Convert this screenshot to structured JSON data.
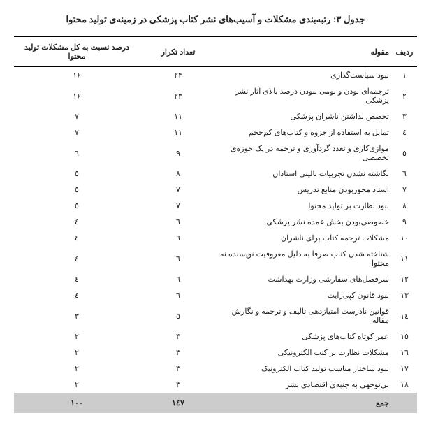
{
  "title": "جدول ۳: رتبه‌بندی مشکلات و آسیب‌های نشر کتاب پزشکی در زمینه‌ی تولید محتوا",
  "columns": {
    "index": "ردیف",
    "category": "مقوله",
    "count": "تعداد تکرار",
    "percent": "درصد نسبت به کل مشکلات تولید محتوا"
  },
  "rows": [
    {
      "i": "۱",
      "cat": "نبود سیاست‌گذاری",
      "cnt": "۲۴",
      "pct": "۱۶"
    },
    {
      "i": "۲",
      "cat": "ترجمه‌ای بودن و بومی نبودن درصد بالای آثار نشر پزشکی",
      "cnt": "۲۳",
      "pct": "۱۶"
    },
    {
      "i": "۳",
      "cat": "تخصص نداشتن ناشران پزشکی",
      "cnt": "۱۱",
      "pct": "۷"
    },
    {
      "i": "٤",
      "cat": "تمایل به استفاده از جزوه و کتاب‌های کم‌حجم",
      "cnt": "۱۱",
      "pct": "۷"
    },
    {
      "i": "٥",
      "cat": "موازی‌کاری و تعدد گردآوری و ترجمه در یک حوزه‌ی تخصصی",
      "cnt": "۹",
      "pct": "٦"
    },
    {
      "i": "٦",
      "cat": "نگاشته نشدن تجربیات بالینی استادان",
      "cnt": "۸",
      "pct": "٥"
    },
    {
      "i": "۷",
      "cat": "استاد محوربودن منابع تدریس",
      "cnt": "۷",
      "pct": "٥"
    },
    {
      "i": "۸",
      "cat": "نبود نظارت بر تولید محتوا",
      "cnt": "۷",
      "pct": "٥"
    },
    {
      "i": "۹",
      "cat": "خصوصی‌بودن بخش عمده نشر پزشکی",
      "cnt": "٦",
      "pct": "٤"
    },
    {
      "i": "۱۰",
      "cat": "مشکلات ترجمه کتاب برای ناشران",
      "cnt": "٦",
      "pct": "٤"
    },
    {
      "i": "۱۱",
      "cat": "شناخته شدن کتاب صرفا به دلیل معروفیت نویسنده نه محتوا",
      "cnt": "٦",
      "pct": "٤"
    },
    {
      "i": "۱۲",
      "cat": "سرفصل‌های سفارشی وزارت بهداشت",
      "cnt": "٦",
      "pct": "٤"
    },
    {
      "i": "۱۳",
      "cat": "نبود قانون کپی‌رایت",
      "cnt": "٦",
      "pct": "٤"
    },
    {
      "i": "۱٤",
      "cat": "قوانین نادرست امتیازدهی تالیف و ترجمه و نگارش مقاله",
      "cnt": "٥",
      "pct": "٣"
    },
    {
      "i": "۱٥",
      "cat": "عمر کوتاه کتاب‌های پزشکی",
      "cnt": "٣",
      "pct": "۲"
    },
    {
      "i": "۱٦",
      "cat": "مشکلات نظارت بر کتب الکترونیکی",
      "cnt": "٣",
      "pct": "۲"
    },
    {
      "i": "۱۷",
      "cat": "نبود ساختار مناسب تولید کتاب الکترونیک",
      "cnt": "٣",
      "pct": "۲"
    },
    {
      "i": "۱۸",
      "cat": "بی‌توجهی به جنبه‌ی اقتصادی نشر",
      "cnt": "٣",
      "pct": "۲"
    }
  ],
  "footer": {
    "label": "جمع",
    "cnt": "۱٤۷",
    "pct": "۱۰۰"
  },
  "style": {
    "type": "table",
    "background_color": "#ffffff",
    "text_color": "#222222",
    "border_color": "#000000",
    "footer_bg": "#cccccc",
    "title_fontsize": 13,
    "body_fontsize": 11,
    "col_widths": {
      "index": 36,
      "count": 110,
      "percent": 180
    }
  }
}
